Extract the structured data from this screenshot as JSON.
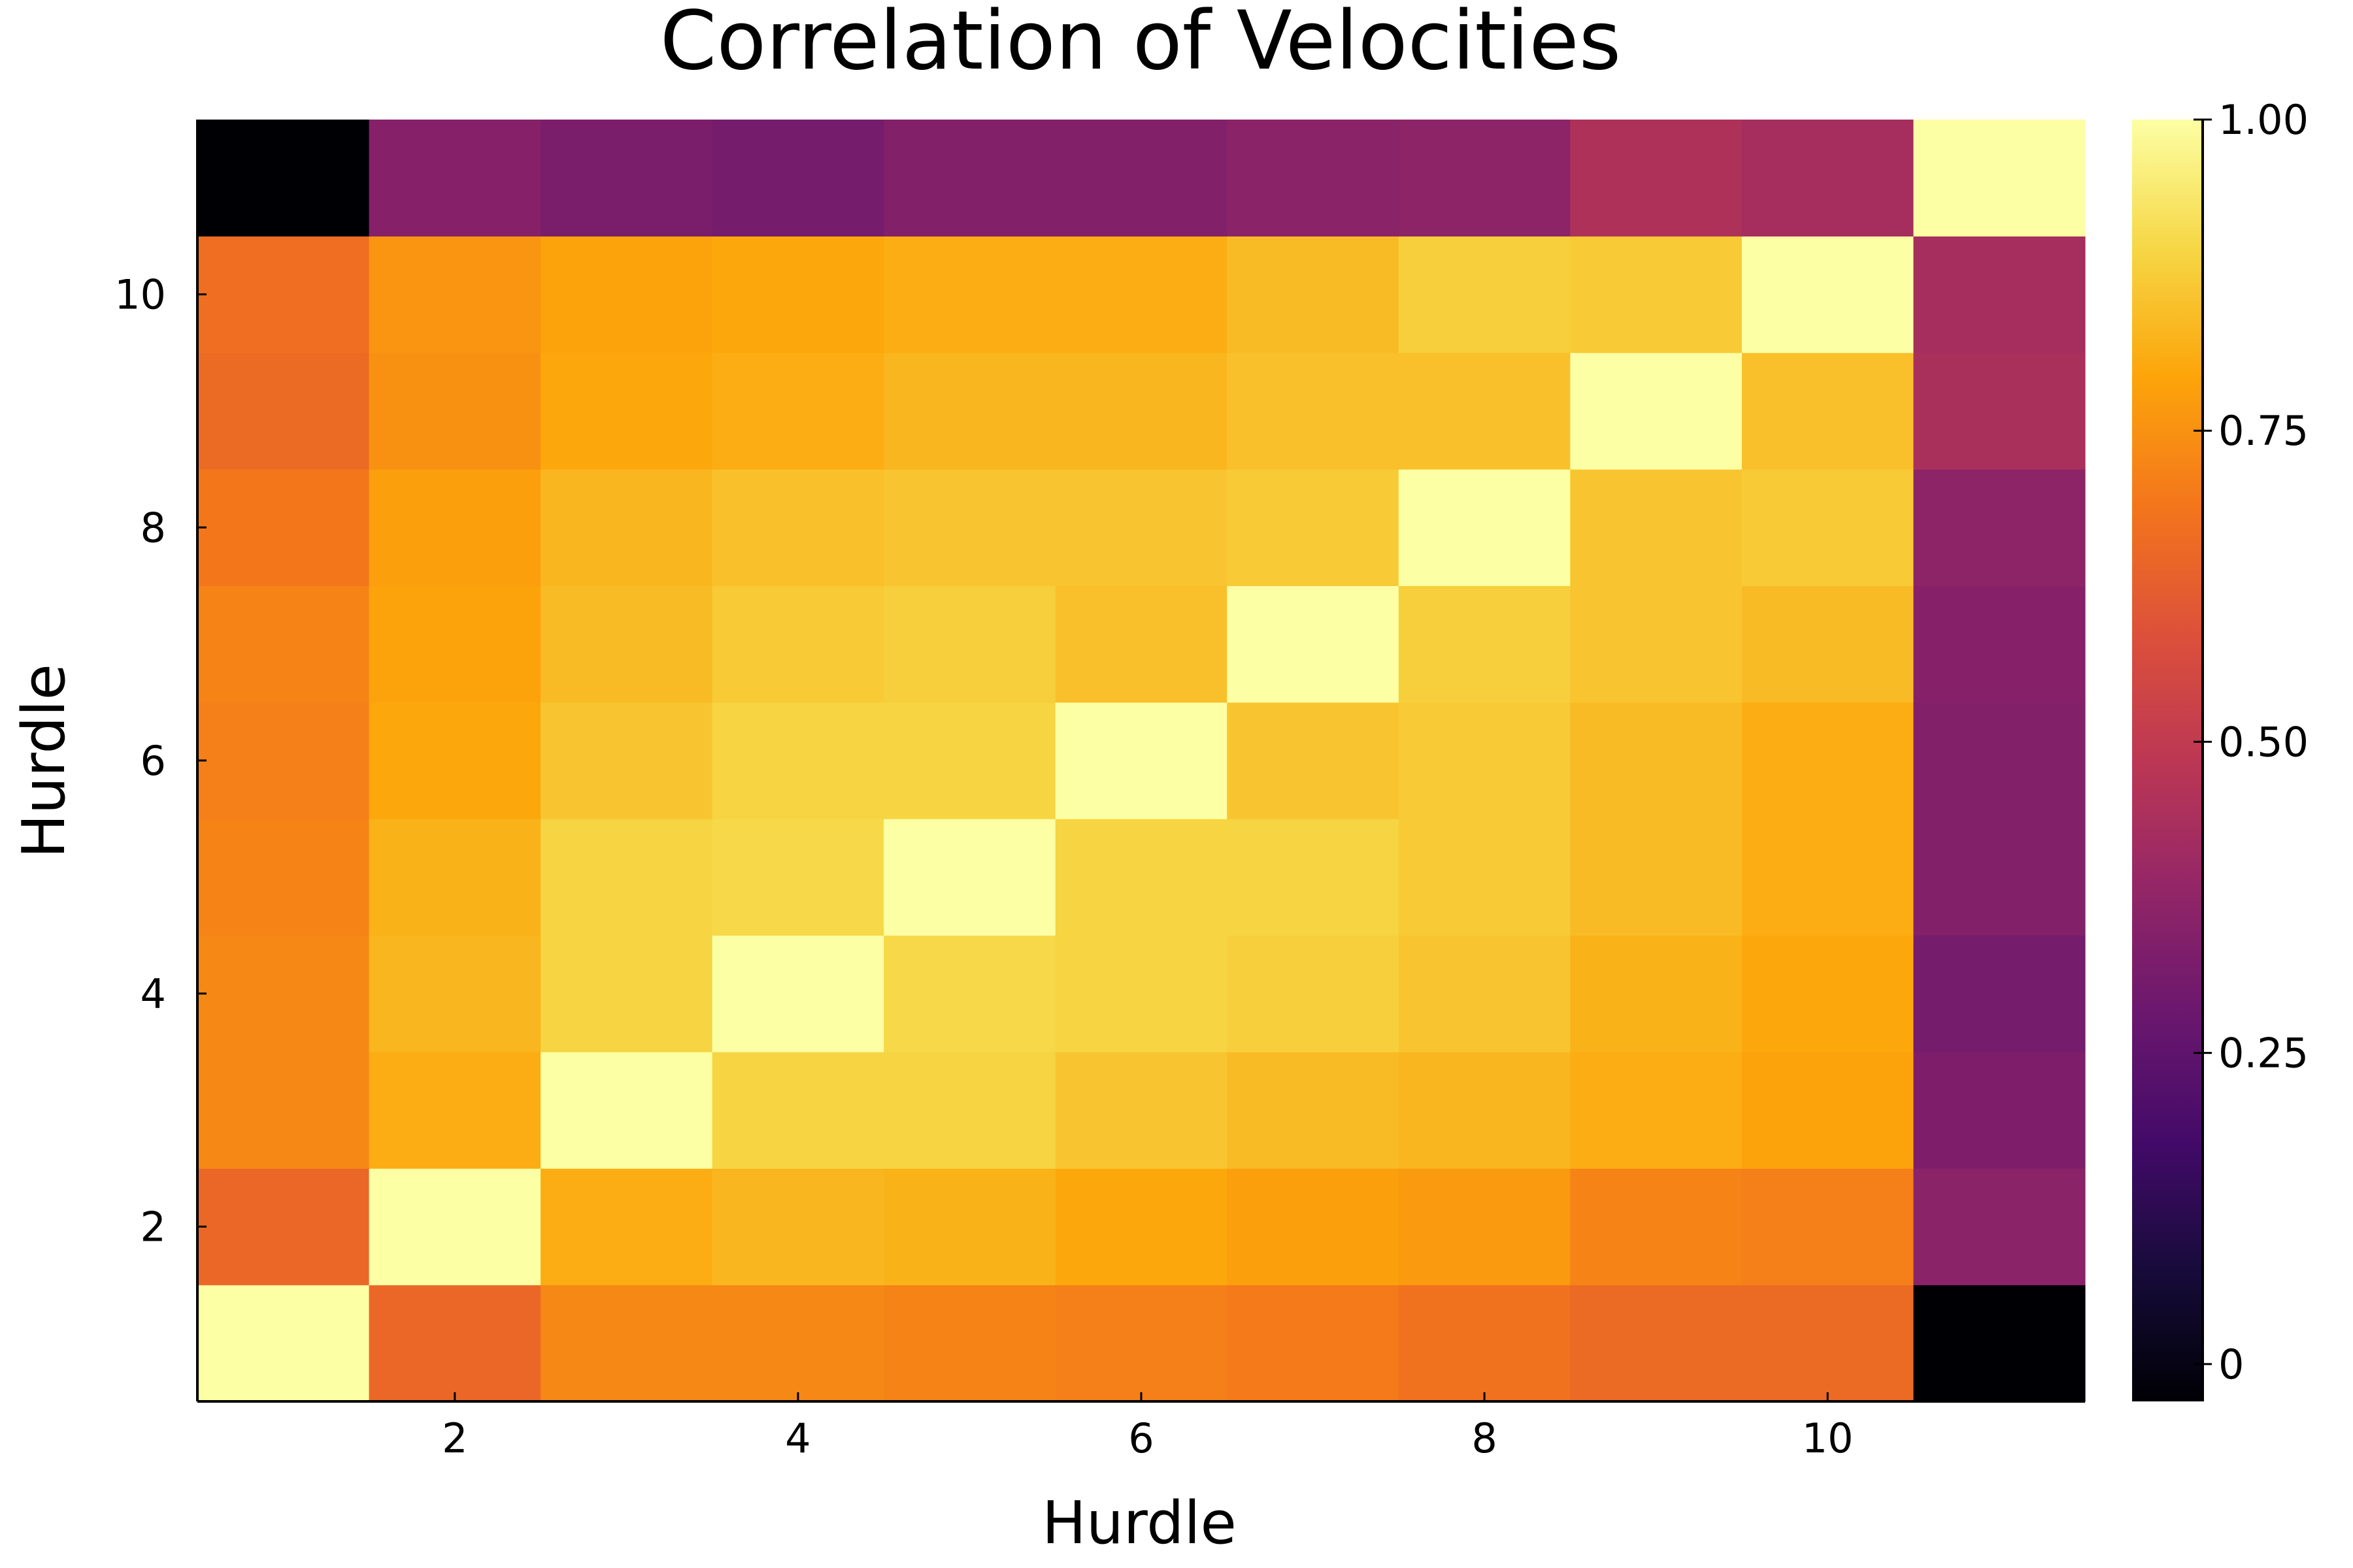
{
  "chart_data": {
    "type": "heatmap",
    "title": "Correlation of Velocities",
    "xlabel": "Hurdle",
    "ylabel": "Hurdle",
    "x": [
      1,
      2,
      3,
      4,
      5,
      6,
      7,
      8,
      9,
      10,
      11
    ],
    "y": [
      1,
      2,
      3,
      4,
      5,
      6,
      7,
      8,
      9,
      10,
      11
    ],
    "xlim": [
      0.5,
      11.5
    ],
    "ylim": [
      0.5,
      11.5
    ],
    "x_ticks": [
      2,
      4,
      6,
      8,
      10
    ],
    "y_ticks": [
      2,
      4,
      6,
      8,
      10
    ],
    "colormap": "inferno",
    "colorbar_range": [
      -0.03,
      1.0
    ],
    "colorbar_ticks": [
      {
        "value": 0,
        "label": "0"
      },
      {
        "value": 0.25,
        "label": "0.25"
      },
      {
        "value": 0.5,
        "label": "0.50"
      },
      {
        "value": 0.75,
        "label": "0.75"
      },
      {
        "value": 1.0,
        "label": "1.00"
      }
    ],
    "grid": false,
    "values": [
      [
        1.0,
        0.65,
        0.73,
        0.73,
        0.72,
        0.71,
        0.7,
        0.68,
        0.66,
        0.66,
        -0.03
      ],
      [
        0.65,
        1.0,
        0.81,
        0.83,
        0.82,
        0.8,
        0.78,
        0.77,
        0.72,
        0.71,
        0.36
      ],
      [
        0.73,
        0.81,
        1.0,
        0.89,
        0.89,
        0.86,
        0.84,
        0.83,
        0.81,
        0.79,
        0.33
      ],
      [
        0.73,
        0.83,
        0.89,
        1.0,
        0.9,
        0.89,
        0.88,
        0.86,
        0.82,
        0.8,
        0.31
      ],
      [
        0.72,
        0.82,
        0.89,
        0.9,
        1.0,
        0.89,
        0.89,
        0.87,
        0.84,
        0.81,
        0.34
      ],
      [
        0.71,
        0.8,
        0.86,
        0.89,
        0.89,
        1.0,
        0.86,
        0.87,
        0.84,
        0.81,
        0.34
      ],
      [
        0.72,
        0.79,
        0.84,
        0.87,
        0.88,
        0.85,
        1.0,
        0.88,
        0.86,
        0.84,
        0.35
      ],
      [
        0.69,
        0.78,
        0.83,
        0.85,
        0.86,
        0.86,
        0.87,
        1.0,
        0.86,
        0.87,
        0.37
      ],
      [
        0.66,
        0.75,
        0.8,
        0.81,
        0.83,
        0.83,
        0.85,
        0.85,
        1.0,
        0.85,
        0.44
      ],
      [
        0.67,
        0.76,
        0.79,
        0.8,
        0.81,
        0.81,
        0.84,
        0.88,
        0.87,
        1.0,
        0.43
      ],
      [
        -0.03,
        0.35,
        0.32,
        0.31,
        0.34,
        0.34,
        0.36,
        0.37,
        0.45,
        0.43,
        1.0
      ]
    ]
  }
}
